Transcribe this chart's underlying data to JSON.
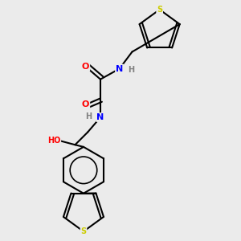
{
  "background_color": "#ebebeb",
  "bond_color": "#000000",
  "atom_colors": {
    "S": "#cccc00",
    "O": "#ff0000",
    "N": "#0000ff",
    "H": "#808080",
    "C": "#000000"
  }
}
